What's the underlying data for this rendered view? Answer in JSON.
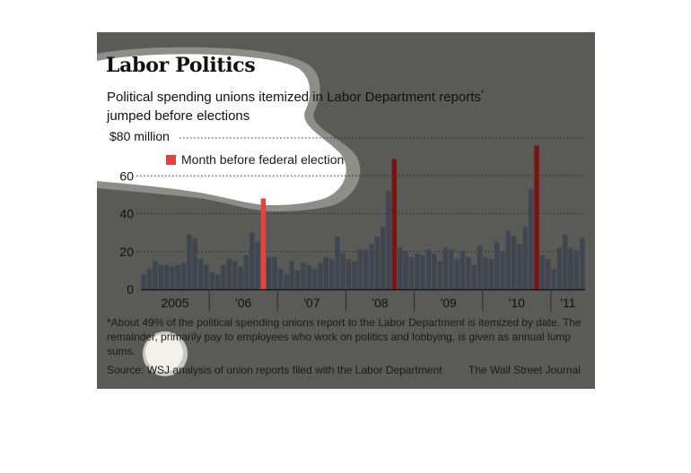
{
  "title": "Labor Politics",
  "subtitle": "Political spending unions itemized in Labor Department reports",
  "subtitle_marker": "*",
  "subtitle_line2": "jumped before elections",
  "footnote": "*About 49% of the political spending unions report to the Labor Department is itemized by date. The remainder, primarily pay to employees who work on politics and lobbying, is given as annual lump sums.",
  "source": "Source: WSJ analysis of union reports filed with the Labor Department",
  "credit": "The Wall Street Journal",
  "colors": {
    "panel": "#5a5a56",
    "bar": "#3f4650",
    "election_bar": "#7a1414",
    "election_bar_highlight": "#e8413c",
    "highlight_blob": "#ffffff"
  },
  "chart_data": {
    "type": "bar",
    "ylabel_top": "$80 million",
    "ylim": [
      0,
      80
    ],
    "yticks": [
      0,
      20,
      40,
      60,
      80
    ],
    "ytick_labels": [
      "0",
      "20",
      "40",
      "60",
      "$80 million"
    ],
    "grid": true,
    "legend": {
      "label": "Month before federal election",
      "position": "top-left"
    },
    "year_labels": [
      "2005",
      "'06",
      "'07",
      "'08",
      "'09",
      "'10",
      "'11"
    ],
    "year_starts": [
      "2005-01",
      "2006-01",
      "2007-01",
      "2008-01",
      "2009-01",
      "2010-01",
      "2011-01"
    ],
    "start_month": "2005-01",
    "values": [
      8,
      11,
      15,
      13,
      13,
      12,
      13,
      14,
      29,
      27,
      16,
      13,
      9,
      8,
      13,
      16,
      15,
      12,
      18,
      30,
      25,
      48,
      17,
      17,
      11,
      8,
      15,
      10,
      14,
      13,
      11,
      14,
      17,
      16,
      28,
      19,
      16,
      15,
      21,
      21,
      24,
      28,
      33,
      52,
      69,
      22,
      20,
      17,
      19,
      18,
      21,
      19,
      15,
      22,
      21,
      16,
      20,
      17,
      13,
      23,
      17,
      16,
      25,
      20,
      31,
      28,
      24,
      33,
      53,
      76,
      18,
      16,
      11,
      22,
      29,
      22,
      21,
      27
    ],
    "election_months": [
      "2006-10",
      "2008-09",
      "2010-10"
    ],
    "highlighted_election_month": "2006-10"
  }
}
